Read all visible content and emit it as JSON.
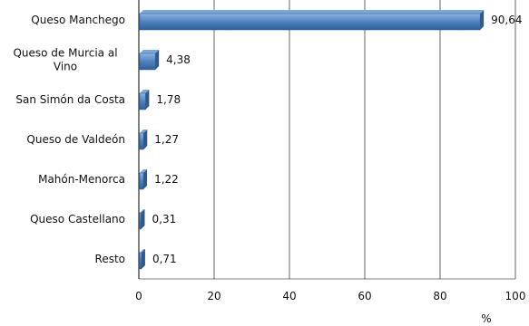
{
  "chart_data": {
    "type": "bar",
    "orientation": "horizontal",
    "categories": [
      "Queso Manchego",
      "Queso de Murcia al Vino",
      "San Simón da Costa",
      "Queso de Valdeón",
      "Mahón-Menorca",
      "Queso Castellano",
      "Resto"
    ],
    "values": [
      90.64,
      4.38,
      1.78,
      1.27,
      1.22,
      0.31,
      0.71
    ],
    "value_labels": [
      "90,64",
      "4,38",
      "1,78",
      "1,27",
      "1,22",
      "0,31",
      "0,71"
    ],
    "category_label_lines": [
      [
        "Queso Manchego"
      ],
      [
        "Queso de Murcia al",
        "Vino"
      ],
      [
        "San Simón da Costa"
      ],
      [
        "Queso de Valdeón"
      ],
      [
        "Mahón-Menorca"
      ],
      [
        "Queso Castellano"
      ],
      [
        "Resto"
      ]
    ],
    "xlim": [
      0,
      100
    ],
    "xticks": [
      0,
      20,
      40,
      60,
      80,
      100
    ],
    "xlabel": "%",
    "title": "",
    "grid": "vertical",
    "legend": "none",
    "colors": {
      "bar_fill": "#4f81bd",
      "bar_side": "#2c5a8c",
      "bar_top": "#7aa6d8",
      "grid": "#000000"
    }
  }
}
